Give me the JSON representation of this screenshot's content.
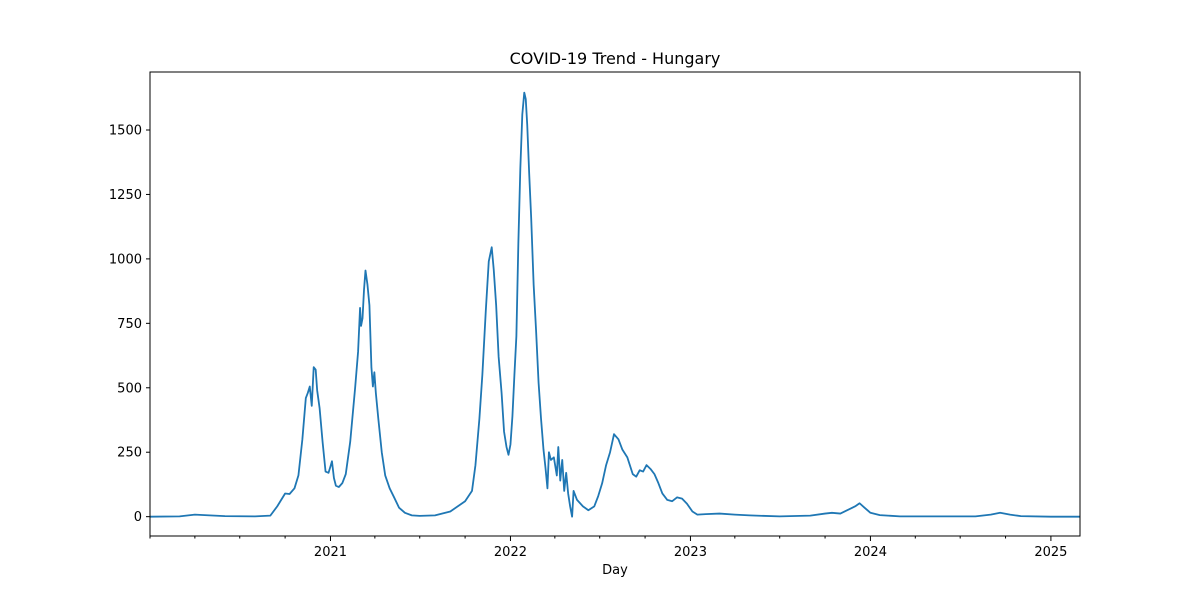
{
  "chart_data": {
    "type": "line",
    "title": "COVID-19 Trend - Hungary",
    "xlabel": "Day",
    "ylabel": "",
    "x_range": [
      "2020-01-01",
      "2025-03-01"
    ],
    "ylim": [
      -75,
      1725
    ],
    "y_ticks": [
      0,
      250,
      500,
      750,
      1000,
      1250,
      1500
    ],
    "x_ticks": [
      {
        "date": "2021-01-01",
        "label": "2021"
      },
      {
        "date": "2022-01-01",
        "label": "2022"
      },
      {
        "date": "2023-01-01",
        "label": "2023"
      },
      {
        "date": "2024-01-01",
        "label": "2024"
      },
      {
        "date": "2025-01-01",
        "label": "2025"
      }
    ],
    "grid": false,
    "color": "#1f77b4",
    "series": [
      {
        "points": [
          [
            "2020-01-01",
            0
          ],
          [
            "2020-03-01",
            1
          ],
          [
            "2020-04-01",
            8
          ],
          [
            "2020-05-01",
            5
          ],
          [
            "2020-06-01",
            2
          ],
          [
            "2020-08-01",
            1
          ],
          [
            "2020-09-01",
            4
          ],
          [
            "2020-09-15",
            40
          ],
          [
            "2020-10-01",
            90
          ],
          [
            "2020-10-10",
            88
          ],
          [
            "2020-10-20",
            110
          ],
          [
            "2020-10-28",
            160
          ],
          [
            "2020-11-05",
            300
          ],
          [
            "2020-11-12",
            460
          ],
          [
            "2020-11-16",
            480
          ],
          [
            "2020-11-20",
            505
          ],
          [
            "2020-11-24",
            430
          ],
          [
            "2020-11-28",
            580
          ],
          [
            "2020-12-02",
            570
          ],
          [
            "2020-12-05",
            490
          ],
          [
            "2020-12-10",
            420
          ],
          [
            "2020-12-16",
            290
          ],
          [
            "2020-12-22",
            175
          ],
          [
            "2020-12-28",
            170
          ],
          [
            "2021-01-01",
            195
          ],
          [
            "2021-01-04",
            215
          ],
          [
            "2021-01-08",
            150
          ],
          [
            "2021-01-12",
            120
          ],
          [
            "2021-01-18",
            115
          ],
          [
            "2021-01-25",
            130
          ],
          [
            "2021-02-01",
            165
          ],
          [
            "2021-02-10",
            290
          ],
          [
            "2021-02-20",
            500
          ],
          [
            "2021-02-26",
            640
          ],
          [
            "2021-03-02",
            810
          ],
          [
            "2021-03-04",
            740
          ],
          [
            "2021-03-07",
            770
          ],
          [
            "2021-03-10",
            880
          ],
          [
            "2021-03-13",
            955
          ],
          [
            "2021-03-17",
            900
          ],
          [
            "2021-03-21",
            820
          ],
          [
            "2021-03-25",
            580
          ],
          [
            "2021-03-28",
            505
          ],
          [
            "2021-03-31",
            560
          ],
          [
            "2021-04-03",
            480
          ],
          [
            "2021-04-08",
            380
          ],
          [
            "2021-04-15",
            250
          ],
          [
            "2021-04-22",
            160
          ],
          [
            "2021-05-01",
            110
          ],
          [
            "2021-05-10",
            75
          ],
          [
            "2021-05-20",
            35
          ],
          [
            "2021-06-01",
            15
          ],
          [
            "2021-06-15",
            5
          ],
          [
            "2021-07-01",
            3
          ],
          [
            "2021-08-01",
            5
          ],
          [
            "2021-09-01",
            20
          ],
          [
            "2021-10-01",
            60
          ],
          [
            "2021-10-15",
            100
          ],
          [
            "2021-10-22",
            200
          ],
          [
            "2021-10-30",
            380
          ],
          [
            "2021-11-05",
            550
          ],
          [
            "2021-11-12",
            800
          ],
          [
            "2021-11-18",
            990
          ],
          [
            "2021-11-24",
            1045
          ],
          [
            "2021-11-28",
            960
          ],
          [
            "2021-12-03",
            820
          ],
          [
            "2021-12-08",
            620
          ],
          [
            "2021-12-14",
            480
          ],
          [
            "2021-12-19",
            330
          ],
          [
            "2021-12-24",
            270
          ],
          [
            "2021-12-28",
            240
          ],
          [
            "2022-01-01",
            280
          ],
          [
            "2022-01-05",
            390
          ],
          [
            "2022-01-09",
            550
          ],
          [
            "2022-01-13",
            700
          ],
          [
            "2022-01-17",
            1060
          ],
          [
            "2022-01-21",
            1350
          ],
          [
            "2022-01-25",
            1560
          ],
          [
            "2022-01-29",
            1645
          ],
          [
            "2022-02-01",
            1620
          ],
          [
            "2022-02-04",
            1520
          ],
          [
            "2022-02-08",
            1330
          ],
          [
            "2022-02-12",
            1160
          ],
          [
            "2022-02-17",
            900
          ],
          [
            "2022-02-22",
            720
          ],
          [
            "2022-02-27",
            520
          ],
          [
            "2022-03-04",
            380
          ],
          [
            "2022-03-09",
            260
          ],
          [
            "2022-03-13",
            190
          ],
          [
            "2022-03-17",
            110
          ],
          [
            "2022-03-20",
            250
          ],
          [
            "2022-03-24",
            220
          ],
          [
            "2022-03-30",
            230
          ],
          [
            "2022-04-05",
            160
          ],
          [
            "2022-04-08",
            270
          ],
          [
            "2022-04-12",
            140
          ],
          [
            "2022-04-16",
            220
          ],
          [
            "2022-04-20",
            100
          ],
          [
            "2022-04-24",
            170
          ],
          [
            "2022-04-28",
            90
          ],
          [
            "2022-05-02",
            40
          ],
          [
            "2022-05-06",
            0
          ],
          [
            "2022-05-09",
            100
          ],
          [
            "2022-05-16",
            65
          ],
          [
            "2022-05-28",
            40
          ],
          [
            "2022-06-08",
            25
          ],
          [
            "2022-06-20",
            40
          ],
          [
            "2022-06-28",
            80
          ],
          [
            "2022-07-06",
            130
          ],
          [
            "2022-07-14",
            200
          ],
          [
            "2022-07-22",
            250
          ],
          [
            "2022-07-30",
            320
          ],
          [
            "2022-08-08",
            300
          ],
          [
            "2022-08-16",
            260
          ],
          [
            "2022-08-26",
            230
          ],
          [
            "2022-09-06",
            165
          ],
          [
            "2022-09-13",
            155
          ],
          [
            "2022-09-20",
            180
          ],
          [
            "2022-09-27",
            175
          ],
          [
            "2022-10-04",
            200
          ],
          [
            "2022-10-12",
            185
          ],
          [
            "2022-10-20",
            165
          ],
          [
            "2022-10-28",
            130
          ],
          [
            "2022-11-05",
            90
          ],
          [
            "2022-11-15",
            65
          ],
          [
            "2022-11-25",
            60
          ],
          [
            "2022-12-05",
            75
          ],
          [
            "2022-12-15",
            70
          ],
          [
            "2022-12-25",
            50
          ],
          [
            "2023-01-05",
            20
          ],
          [
            "2023-01-15",
            8
          ],
          [
            "2023-02-01",
            10
          ],
          [
            "2023-03-01",
            12
          ],
          [
            "2023-04-01",
            8
          ],
          [
            "2023-05-01",
            5
          ],
          [
            "2023-07-01",
            1
          ],
          [
            "2023-09-01",
            4
          ],
          [
            "2023-10-01",
            12
          ],
          [
            "2023-10-15",
            15
          ],
          [
            "2023-11-01",
            12
          ],
          [
            "2023-11-15",
            25
          ],
          [
            "2023-12-01",
            40
          ],
          [
            "2023-12-10",
            52
          ],
          [
            "2023-12-20",
            35
          ],
          [
            "2024-01-01",
            15
          ],
          [
            "2024-01-20",
            6
          ],
          [
            "2024-03-01",
            1
          ],
          [
            "2024-08-01",
            1
          ],
          [
            "2024-09-01",
            8
          ],
          [
            "2024-09-20",
            15
          ],
          [
            "2024-10-10",
            8
          ],
          [
            "2024-11-01",
            2
          ],
          [
            "2025-01-01",
            0
          ],
          [
            "2025-03-01",
            0
          ]
        ]
      }
    ]
  }
}
